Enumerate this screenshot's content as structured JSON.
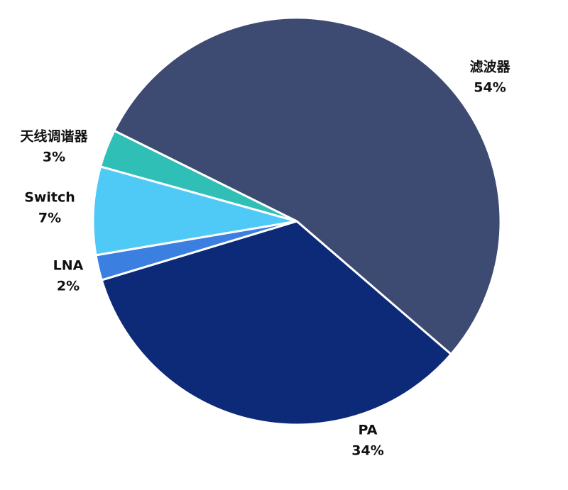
{
  "chart_data": {
    "type": "pie",
    "categories": [
      "滤波器",
      "PA",
      "LNA",
      "Switch",
      "天线调谐器"
    ],
    "values": [
      54,
      34,
      2,
      7,
      3
    ],
    "value_labels": [
      "54%",
      "34%",
      "2%",
      "7%",
      "3%"
    ],
    "colors": [
      "#3d4a72",
      "#0d2a78",
      "#3b7fe0",
      "#4fc9f6",
      "#2fbfb6"
    ]
  }
}
